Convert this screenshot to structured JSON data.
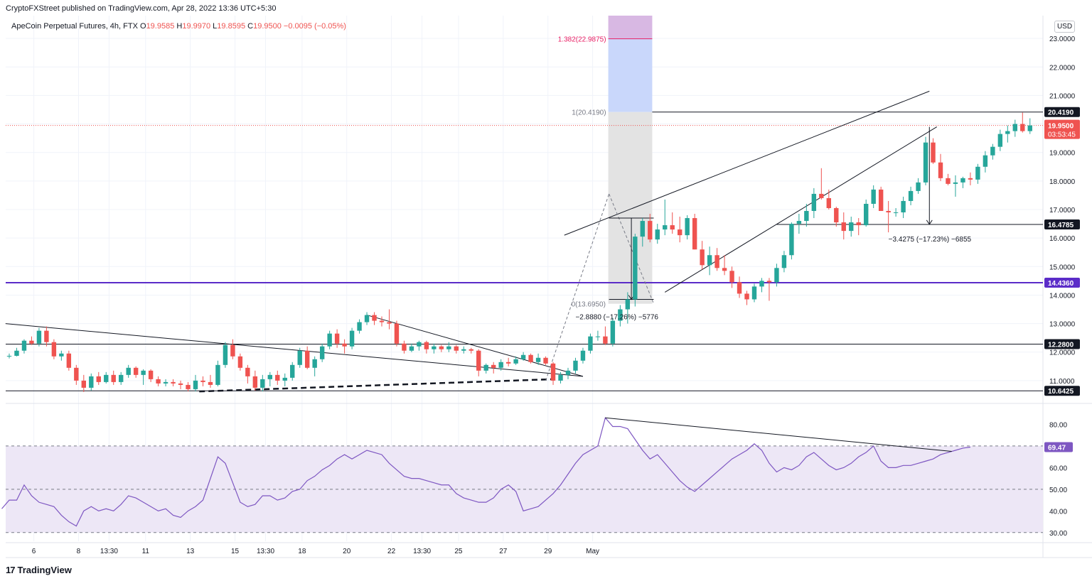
{
  "header": {
    "published": "CryptoFXStreet published on TradingView.com, Apr 28, 2022 13:36 UTC+5:30"
  },
  "legend": {
    "symbol": "ApeCoin Perpetual Futures, 4h, FTX",
    "open_label": "O",
    "open": "19.9585",
    "high_label": "H",
    "high": "19.9970",
    "low_label": "L",
    "low": "19.8595",
    "close_label": "C",
    "close": "19.9500",
    "change": "−0.0095 (−0.05%)"
  },
  "currency_button": "USD",
  "footer": {
    "logo_text": "TradingView",
    "logo_icon": "tradingview-logo-icon"
  },
  "colors": {
    "up": "#26a69a",
    "down": "#ef5350",
    "support_purple": "#5b2cc8",
    "rsi_line": "#7e57c2",
    "rsi_band": "#ede7f6",
    "target_band": "#c9d7fb",
    "ext_band": "#d8b8e3",
    "measure_band": "#e3e3e3"
  },
  "chart_data": [
    {
      "type": "candlestick",
      "title": "ApeCoin Perpetual Futures, 4h, FTX",
      "ylim": [
        10.25,
        23.8
      ],
      "y_ticks": [
        "23.0000",
        "22.0000",
        "21.0000",
        "20.0000",
        "19.0000",
        "18.0000",
        "17.0000",
        "16.0000",
        "15.0000",
        "14.0000",
        "13.0000",
        "12.0000",
        "11.0000"
      ],
      "x_ticks": [
        {
          "label": "6",
          "t": 3.3
        },
        {
          "label": "8",
          "t": 9.3
        },
        {
          "label": "13:30",
          "t": 13.4
        },
        {
          "label": "11",
          "t": 18.3
        },
        {
          "label": "13",
          "t": 24.3
        },
        {
          "label": "15",
          "t": 30.3
        },
        {
          "label": "13:30",
          "t": 34.4
        },
        {
          "label": "18",
          "t": 39.3
        },
        {
          "label": "20",
          "t": 45.3
        },
        {
          "label": "22",
          "t": 51.3
        },
        {
          "label": "13:30",
          "t": 55.4
        },
        {
          "label": "25",
          "t": 60.3
        },
        {
          "label": "27",
          "t": 66.3
        },
        {
          "label": "29",
          "t": 72.3
        },
        {
          "label": "May",
          "t": 78.3
        }
      ],
      "last_index": 70,
      "candles": [
        [
          11.87,
          11.95,
          11.78,
          11.87
        ],
        [
          11.87,
          12.15,
          11.85,
          12.05
        ],
        [
          12.05,
          12.45,
          11.95,
          12.4
        ],
        [
          12.4,
          12.55,
          12.25,
          12.3
        ],
        [
          12.3,
          12.85,
          12.2,
          12.75
        ],
        [
          12.75,
          12.9,
          12.2,
          12.35
        ],
        [
          12.35,
          12.45,
          11.75,
          11.85
        ],
        [
          11.85,
          12.05,
          11.7,
          11.95
        ],
        [
          11.95,
          12.05,
          11.35,
          11.45
        ],
        [
          11.45,
          11.55,
          10.85,
          11.0
        ],
        [
          11.0,
          11.2,
          10.6,
          10.75
        ],
        [
          10.75,
          11.25,
          10.65,
          11.15
        ],
        [
          11.15,
          11.3,
          10.85,
          10.95
        ],
        [
          10.95,
          11.3,
          10.9,
          11.2
        ],
        [
          11.2,
          11.35,
          10.85,
          10.95
        ],
        [
          10.95,
          11.3,
          10.85,
          11.2
        ],
        [
          11.2,
          11.55,
          11.1,
          11.45
        ],
        [
          11.45,
          11.5,
          11.1,
          11.2
        ],
        [
          11.2,
          11.4,
          10.85,
          11.35
        ],
        [
          11.35,
          11.4,
          10.95,
          11.05
        ],
        [
          11.05,
          11.15,
          10.8,
          10.9
        ],
        [
          10.9,
          11.05,
          10.8,
          10.95
        ],
        [
          10.95,
          11.05,
          10.8,
          10.9
        ],
        [
          10.9,
          11.0,
          10.7,
          10.85
        ],
        [
          10.85,
          10.95,
          10.62,
          10.7
        ],
        [
          10.7,
          11.2,
          10.62,
          11.0
        ],
        [
          11.0,
          11.15,
          10.8,
          10.95
        ],
        [
          10.95,
          11.2,
          10.75,
          10.85
        ],
        [
          10.85,
          11.7,
          10.8,
          11.55
        ],
        [
          11.55,
          12.35,
          11.45,
          12.25
        ],
        [
          12.25,
          12.45,
          11.75,
          11.85
        ],
        [
          11.85,
          11.95,
          11.35,
          11.45
        ],
        [
          11.45,
          11.55,
          10.9,
          11.15
        ],
        [
          11.15,
          11.35,
          10.65,
          10.75
        ],
        [
          10.75,
          11.2,
          10.62,
          11.05
        ],
        [
          11.05,
          11.3,
          10.8,
          11.2
        ],
        [
          11.2,
          11.35,
          10.85,
          11.0
        ],
        [
          11.0,
          11.25,
          10.8,
          11.1
        ],
        [
          11.1,
          11.65,
          11.0,
          11.55
        ],
        [
          11.55,
          12.15,
          11.45,
          12.05
        ],
        [
          12.05,
          12.2,
          11.4,
          11.45
        ],
        [
          11.45,
          11.85,
          11.15,
          11.75
        ],
        [
          11.75,
          12.3,
          11.65,
          12.2
        ],
        [
          12.2,
          12.75,
          12.1,
          12.65
        ]
      ],
      "candles_b": [
        [
          12.65,
          12.8,
          12.15,
          12.3
        ],
        [
          12.3,
          12.45,
          11.95,
          12.2
        ],
        [
          12.2,
          12.85,
          12.1,
          12.75
        ],
        [
          12.75,
          13.15,
          12.65,
          13.05
        ],
        [
          13.05,
          13.4,
          12.95,
          13.3
        ],
        [
          13.3,
          13.4,
          12.95,
          13.1
        ],
        [
          13.1,
          13.25,
          12.9,
          13.05
        ],
        [
          13.05,
          13.5,
          12.8,
          13.0
        ],
        [
          13.0,
          13.1,
          12.2,
          12.3
        ],
        [
          12.3,
          12.4,
          11.95,
          12.05
        ],
        [
          12.05,
          12.3,
          12.0,
          12.2
        ],
        [
          12.2,
          12.4,
          12.05,
          12.35
        ],
        [
          12.35,
          12.4,
          11.95,
          12.1
        ],
        [
          12.1,
          12.3,
          11.95,
          12.2
        ],
        [
          12.2,
          12.25,
          12.0,
          12.1
        ],
        [
          12.1,
          12.35,
          12.0,
          12.2
        ],
        [
          12.2,
          12.25,
          11.95,
          12.05
        ],
        [
          12.05,
          12.2,
          11.95,
          12.1
        ],
        [
          12.1,
          12.15,
          11.95,
          12.05
        ],
        [
          12.05,
          12.1,
          11.15,
          11.35
        ],
        [
          11.35,
          11.6,
          11.25,
          11.55
        ],
        [
          11.55,
          11.65,
          11.25,
          11.45
        ],
        [
          11.45,
          11.75,
          11.35,
          11.65
        ],
        [
          11.65,
          11.8,
          11.5,
          11.6
        ],
        [
          11.6,
          11.85,
          11.55,
          11.75
        ],
        [
          11.75,
          12.0,
          11.7,
          11.9
        ],
        [
          11.9,
          11.95,
          11.6,
          11.65
        ],
        [
          11.65,
          11.95,
          11.55,
          11.8
        ],
        [
          11.8,
          11.85,
          11.55,
          11.6
        ],
        [
          11.6,
          11.65,
          10.85,
          11.0
        ],
        [
          11.0,
          11.3,
          10.9,
          11.2
        ],
        [
          11.2,
          11.45,
          11.05,
          11.35
        ],
        [
          11.35,
          11.8,
          11.25,
          11.7
        ],
        [
          11.7,
          12.15,
          11.6,
          12.05
        ],
        [
          12.05,
          12.65,
          11.95,
          12.55
        ],
        [
          12.55,
          12.75,
          12.4,
          12.55
        ],
        [
          12.55,
          12.9,
          12.25,
          12.3
        ],
        [
          12.3,
          13.2,
          12.2,
          13.1
        ],
        [
          13.1,
          13.65,
          12.9,
          13.5
        ],
        [
          13.5,
          14.1,
          13.0,
          13.85
        ],
        [
          13.85,
          16.15,
          13.6,
          16.05
        ],
        [
          16.05,
          16.7,
          15.7,
          16.6
        ],
        [
          16.6,
          16.85,
          15.85,
          15.95
        ]
      ],
      "candles_c": [
        [
          15.95,
          16.5,
          15.8,
          16.3
        ],
        [
          16.3,
          17.35,
          16.1,
          16.45
        ],
        [
          16.45,
          16.9,
          16.15,
          16.3
        ],
        [
          16.3,
          16.75,
          15.85,
          16.1
        ],
        [
          16.1,
          16.8,
          15.95,
          16.7
        ],
        [
          16.7,
          16.85,
          15.6,
          15.6
        ],
        [
          15.6,
          15.9,
          14.9,
          15.05
        ],
        [
          15.05,
          15.7,
          14.7,
          15.4
        ],
        [
          15.4,
          15.65,
          14.85,
          14.95
        ],
        [
          14.95,
          15.4,
          14.7,
          14.85
        ],
        [
          14.85,
          15.0,
          14.25,
          14.45
        ],
        [
          14.45,
          14.65,
          13.9,
          14.05
        ],
        [
          14.05,
          14.15,
          13.65,
          13.85
        ],
        [
          13.85,
          14.4,
          13.75,
          14.3
        ],
        [
          14.3,
          14.6,
          14.1,
          14.5
        ],
        [
          14.5,
          14.6,
          13.8,
          14.45
        ],
        [
          14.45,
          15.1,
          14.3,
          14.95
        ],
        [
          14.95,
          15.55,
          14.8,
          15.4
        ],
        [
          15.4,
          16.55,
          15.25,
          16.5
        ],
        [
          16.5,
          16.85,
          16.15,
          16.6
        ],
        [
          16.6,
          17.2,
          16.4,
          16.95
        ],
        [
          16.95,
          17.75,
          16.7,
          17.55
        ],
        [
          17.55,
          18.45,
          17.35,
          17.4
        ],
        [
          17.4,
          17.7,
          17.0,
          17.05
        ],
        [
          17.05,
          17.1,
          16.4,
          16.55
        ]
      ],
      "candles_d": [
        [
          16.55,
          16.9,
          15.95,
          16.25
        ],
        [
          16.25,
          16.75,
          16.05,
          16.55
        ],
        [
          16.55,
          16.7,
          16.1,
          16.45
        ],
        [
          16.45,
          17.35,
          16.4,
          17.2
        ],
        [
          17.2,
          17.85,
          17.05,
          17.7
        ],
        [
          17.7,
          17.8,
          17.05,
          16.95
        ],
        [
          16.95,
          17.3,
          16.2,
          16.9
        ],
        [
          16.9,
          17.05,
          16.75,
          16.9
        ],
        [
          16.9,
          17.45,
          16.7,
          17.3
        ],
        [
          17.3,
          17.8,
          17.15,
          17.65
        ],
        [
          17.65,
          18.1,
          17.55,
          17.95
        ],
        [
          17.95,
          19.55,
          17.85,
          19.35
        ],
        [
          19.35,
          19.5,
          18.6,
          18.65
        ],
        [
          18.65,
          18.95,
          18.0,
          18.1
        ],
        [
          18.1,
          18.25,
          17.85,
          17.9
        ],
        [
          17.9,
          18.2,
          17.45,
          17.95
        ],
        [
          17.95,
          18.15,
          17.75,
          18.1
        ],
        [
          18.1,
          18.3,
          17.85,
          18.05
        ],
        [
          18.05,
          18.6,
          17.9,
          18.5
        ],
        [
          18.5,
          19.05,
          18.3,
          18.9
        ],
        [
          18.9,
          19.3,
          18.75,
          19.2
        ],
        [
          19.2,
          19.8,
          19.05,
          19.65
        ],
        [
          19.65,
          19.95,
          19.35,
          19.75
        ],
        [
          19.75,
          20.15,
          19.55,
          20.0
        ],
        [
          20.0,
          20.4,
          19.7,
          19.75
        ],
        [
          19.75,
          20.2,
          19.65,
          19.95
        ]
      ],
      "horizontal_levels": [
        {
          "value": 20.419,
          "label": "20.4190",
          "color": "#131722"
        },
        {
          "value": 16.4785,
          "label": "16.4785",
          "color": "#131722"
        },
        {
          "value": 14.436,
          "label": "14.4360",
          "color": "#5b2cc8"
        },
        {
          "value": 12.28,
          "label": "12.2800",
          "color": "#131722"
        },
        {
          "value": 10.6425,
          "label": "10.6425",
          "color": "#131722"
        }
      ],
      "current_price": {
        "value": 19.95,
        "label": "19.9500",
        "countdown": "03:53:45"
      },
      "fib_labels": [
        {
          "text": "1.382(22.9875)",
          "value": 22.9875,
          "color": "#e91e63"
        },
        {
          "text": "1(20.4190)",
          "value": 20.419,
          "color": "#787b86"
        },
        {
          "text": "0(13.6950)",
          "value": 13.695,
          "color": "#787b86"
        }
      ],
      "annotations": [
        {
          "text": "−2.8880 (−17.26%) −5776"
        },
        {
          "text": "−3.4275 (−17.23%) −6855"
        }
      ]
    },
    {
      "type": "line",
      "title": "RSI",
      "ylim": [
        26,
        89
      ],
      "y_ticks": [
        "80.00",
        "70.00",
        "60.00",
        "50.00",
        "40.00",
        "30.00"
      ],
      "band": [
        30,
        70
      ],
      "midline": 50,
      "last_label": "69.47",
      "values": [
        41,
        45,
        45,
        52,
        47,
        44,
        43,
        42,
        38,
        35,
        33,
        40,
        42,
        40,
        41,
        40,
        43,
        47,
        46,
        44,
        42,
        40,
        41,
        38,
        37,
        40,
        42,
        45,
        55,
        65,
        62,
        53,
        44,
        42,
        43,
        47,
        47,
        45,
        46,
        49,
        50,
        54,
        56,
        59,
        61,
        64,
        66,
        64,
        66,
        68,
        67,
        66,
        62,
        59,
        56,
        55,
        55,
        54,
        53,
        52,
        52,
        48,
        46,
        45,
        44,
        44,
        46,
        50,
        52,
        49,
        40,
        41,
        42,
        45,
        48,
        52,
        57,
        62,
        66,
        68,
        70,
        83,
        79,
        79,
        78,
        73,
        68,
        64,
        66,
        62,
        58,
        54,
        51,
        49,
        52,
        55,
        58,
        61,
        64,
        66,
        68,
        71,
        68,
        62,
        58,
        60,
        59,
        61,
        65,
        67,
        64,
        61,
        59,
        60,
        62,
        65,
        67,
        70,
        63,
        60,
        60,
        61,
        61,
        62,
        63,
        64,
        66,
        67,
        68,
        69,
        69.47
      ]
    }
  ]
}
